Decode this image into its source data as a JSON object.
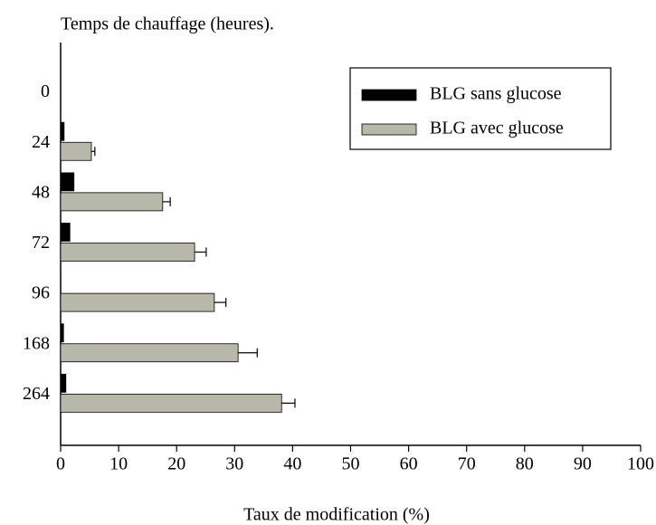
{
  "chart_data": {
    "type": "hbar",
    "title": "Temps de chauffage (heures).",
    "xlabel": "Taux de modification (%)",
    "categories": [
      "0",
      "24",
      "48",
      "72",
      "96",
      "168",
      "264"
    ],
    "series": [
      {
        "name": "BLG sans glucose",
        "color": "#000000",
        "values": [
          0,
          0.6,
          2.3,
          1.6,
          0,
          0.5,
          0.9
        ]
      },
      {
        "name": "BLG avec glucose",
        "color": "#b8b8aa",
        "values": [
          0,
          5.3,
          17.6,
          23.1,
          26.5,
          30.6,
          38.1
        ],
        "errors": [
          0,
          0.6,
          1.3,
          2.0,
          2.0,
          3.3,
          2.3
        ]
      }
    ],
    "xlim": [
      0,
      100
    ],
    "xticks": [
      0,
      10,
      20,
      30,
      40,
      50,
      60,
      70,
      80,
      90,
      100
    ],
    "legend": "upper right"
  }
}
